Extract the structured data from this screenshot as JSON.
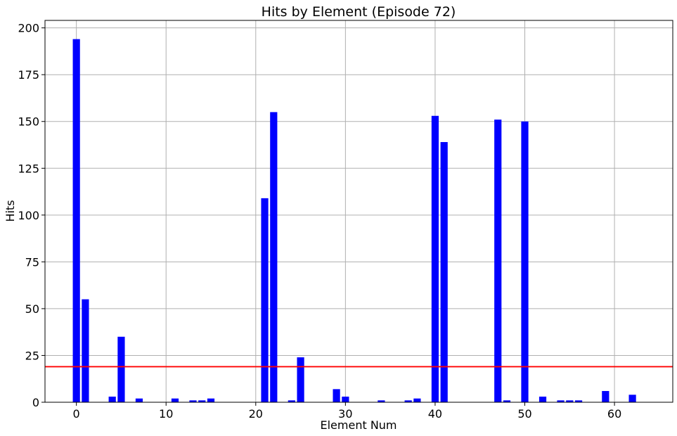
{
  "chart_data": {
    "type": "bar",
    "title": "Hits by Element (Episode 72)",
    "xlabel": "Element Num",
    "ylabel": "Hits",
    "xlim": [
      -3.5,
      66.5
    ],
    "ylim": [
      0,
      204
    ],
    "xticks": [
      0,
      10,
      20,
      30,
      40,
      50,
      60
    ],
    "yticks": [
      0,
      25,
      50,
      75,
      100,
      125,
      150,
      175,
      200
    ],
    "grid": true,
    "bar_color": "#0000ff",
    "series": [
      {
        "x": [
          0,
          1,
          4,
          5,
          7,
          11,
          13,
          14,
          15,
          21,
          22,
          24,
          25,
          29,
          30,
          34,
          37,
          38,
          40,
          41,
          47,
          48,
          50,
          52,
          54,
          55,
          56,
          59,
          62
        ],
        "values": [
          194,
          55,
          3,
          35,
          2,
          2,
          1,
          1,
          2,
          109,
          155,
          1,
          24,
          7,
          3,
          1,
          1,
          2,
          153,
          139,
          151,
          1,
          150,
          3,
          1,
          1,
          1,
          6,
          4
        ]
      }
    ],
    "reference_line": {
      "orientation": "horizontal",
      "y": 19,
      "color": "#ff0000"
    }
  }
}
